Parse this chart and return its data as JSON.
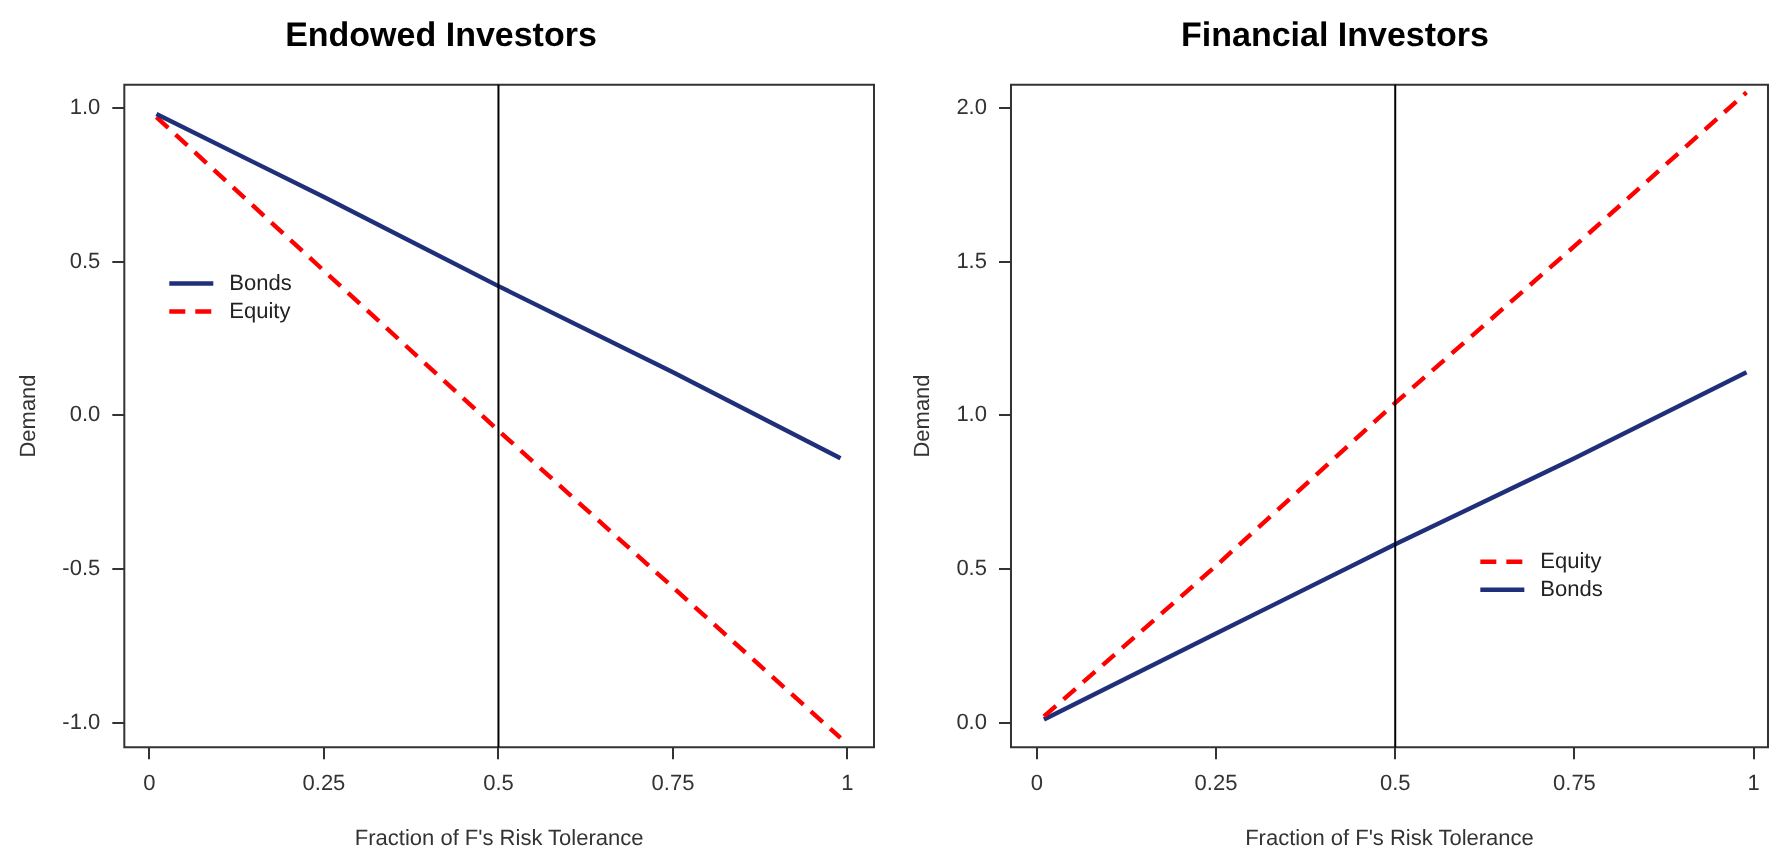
{
  "chart_data": [
    {
      "type": "line",
      "title": "Endowed Investors",
      "xlabel": "Fraction of F's Risk Tolerance",
      "ylabel": "Demand",
      "x": [
        0.01,
        0.25,
        0.5,
        0.75,
        0.99
      ],
      "series": [
        {
          "name": "Bonds",
          "color": "#1f2f7a",
          "line_style": "solid",
          "values": [
            0.98,
            0.71,
            0.42,
            0.14,
            -0.14
          ]
        },
        {
          "name": "Equity",
          "color": "#ff0000",
          "line_style": "dashed",
          "values": [
            0.97,
            0.47,
            -0.05,
            -0.56,
            -1.05
          ]
        }
      ],
      "xlim": [
        -0.036,
        1.038
      ],
      "xticks": [
        0,
        0.25,
        0.5,
        0.75,
        1
      ],
      "ylim": [
        -1.08,
        1.075
      ],
      "yticks": [
        {
          "value": -1,
          "label": "-1.0"
        },
        {
          "value": -0.5,
          "label": "-0.5"
        },
        {
          "value": 0,
          "label": "0.0"
        },
        {
          "value": 0.5,
          "label": "0.5"
        },
        {
          "value": 1,
          "label": "1.0"
        }
      ],
      "ref_lines": [
        {
          "axis": "x",
          "value": 0.5,
          "color": "#000000"
        }
      ],
      "legend": "left",
      "grid": false,
      "marker": "none"
    },
    {
      "type": "line",
      "title": "Financial Investors",
      "xlabel": "Fraction of F's Risk Tolerance",
      "ylabel": "Demand",
      "x": [
        0.01,
        0.25,
        0.5,
        0.75,
        0.99
      ],
      "series": [
        {
          "name": "Equity",
          "color": "#ff0000",
          "line_style": "dashed",
          "values": [
            0.02,
            0.51,
            1.04,
            1.55,
            2.05
          ]
        },
        {
          "name": "Bonds",
          "color": "#1f2f7a",
          "line_style": "solid",
          "values": [
            0.01,
            0.29,
            0.58,
            0.86,
            1.14
          ]
        }
      ],
      "xlim": [
        -0.036,
        1.02
      ],
      "xticks": [
        0,
        0.25,
        0.5,
        0.75,
        1
      ],
      "ylim": [
        -0.08,
        2.075
      ],
      "yticks": [
        {
          "value": 0,
          "label": "0.0"
        },
        {
          "value": 0.5,
          "label": "0.5"
        },
        {
          "value": 1,
          "label": "1.0"
        },
        {
          "value": 1.5,
          "label": "1.5"
        },
        {
          "value": 2,
          "label": "2.0"
        }
      ],
      "ref_lines": [
        {
          "axis": "x",
          "value": 0.5,
          "color": "#000000"
        }
      ],
      "legend": "bottom right",
      "grid": false,
      "marker": "none"
    }
  ]
}
